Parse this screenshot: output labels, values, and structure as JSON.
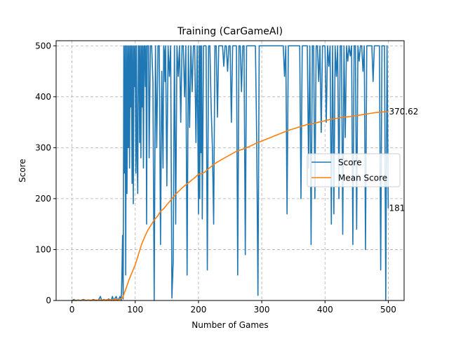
{
  "chart_data": {
    "type": "line",
    "title": "Training (CarGameAI)",
    "xlabel": "Number of Games",
    "ylabel": "Score",
    "xlim": [
      -25,
      525
    ],
    "ylim": [
      0,
      510
    ],
    "xticks": [
      0,
      100,
      200,
      300,
      400,
      500
    ],
    "yticks": [
      0,
      100,
      200,
      300,
      400,
      500
    ],
    "grid": true,
    "legend_position": "center-right",
    "series": [
      {
        "name": "Score",
        "color": "#1f77b4",
        "points": [
          [
            0,
            0
          ],
          [
            3,
            2
          ],
          [
            6,
            0
          ],
          [
            10,
            1
          ],
          [
            14,
            0
          ],
          [
            18,
            2
          ],
          [
            22,
            0
          ],
          [
            26,
            1
          ],
          [
            30,
            0
          ],
          [
            34,
            2
          ],
          [
            38,
            0
          ],
          [
            42,
            1
          ],
          [
            45,
            8
          ],
          [
            47,
            0
          ],
          [
            50,
            2
          ],
          [
            54,
            0
          ],
          [
            58,
            3
          ],
          [
            62,
            0
          ],
          [
            64,
            8
          ],
          [
            66,
            0
          ],
          [
            68,
            4
          ],
          [
            70,
            8
          ],
          [
            72,
            0
          ],
          [
            74,
            3
          ],
          [
            76,
            8
          ],
          [
            78,
            0
          ],
          [
            79,
            50
          ],
          [
            80,
            128
          ],
          [
            81,
            3
          ],
          [
            82,
            500
          ],
          [
            83,
            250
          ],
          [
            84,
            500
          ],
          [
            85,
            50
          ],
          [
            86,
            500
          ],
          [
            87,
            210
          ],
          [
            88,
            500
          ],
          [
            89,
            300
          ],
          [
            90,
            500
          ],
          [
            91,
            260
          ],
          [
            92,
            500
          ],
          [
            93,
            380
          ],
          [
            94,
            500
          ],
          [
            95,
            230
          ],
          [
            96,
            500
          ],
          [
            97,
            190
          ],
          [
            98,
            500
          ],
          [
            99,
            420
          ],
          [
            100,
            500
          ],
          [
            101,
            250
          ],
          [
            102,
            500
          ],
          [
            103,
            280
          ],
          [
            104,
            210
          ],
          [
            105,
            500
          ],
          [
            106,
            500
          ],
          [
            107,
            310
          ],
          [
            108,
            500
          ],
          [
            109,
            280
          ],
          [
            110,
            500
          ],
          [
            111,
            380
          ],
          [
            112,
            500
          ],
          [
            113,
            260
          ],
          [
            114,
            500
          ],
          [
            115,
            500
          ],
          [
            116,
            420
          ],
          [
            117,
            500
          ],
          [
            118,
            150
          ],
          [
            119,
            500
          ],
          [
            120,
            500
          ],
          [
            121,
            500
          ],
          [
            122,
            280
          ],
          [
            124,
            500
          ],
          [
            126,
            500
          ],
          [
            128,
            430
          ],
          [
            130,
            0
          ],
          [
            132,
            500
          ],
          [
            134,
            300
          ],
          [
            136,
            500
          ],
          [
            138,
            500
          ],
          [
            140,
            110
          ],
          [
            142,
            450
          ],
          [
            144,
            260
          ],
          [
            145,
            500
          ],
          [
            146,
            490
          ],
          [
            147,
            430
          ],
          [
            148,
            500
          ],
          [
            150,
            225
          ],
          [
            152,
            500
          ],
          [
            154,
            440
          ],
          [
            156,
            500
          ],
          [
            158,
            5
          ],
          [
            160,
            75
          ],
          [
            162,
            500
          ],
          [
            164,
            150
          ],
          [
            166,
            500
          ],
          [
            168,
            440
          ],
          [
            170,
            500
          ],
          [
            172,
            350
          ],
          [
            174,
            500
          ],
          [
            176,
            500
          ],
          [
            178,
            400
          ],
          [
            180,
            500
          ],
          [
            182,
            50
          ],
          [
            184,
            500
          ],
          [
            186,
            340
          ],
          [
            188,
            500
          ],
          [
            190,
            410
          ],
          [
            192,
            500
          ],
          [
            194,
            500
          ],
          [
            196,
            310
          ],
          [
            198,
            500
          ],
          [
            200,
            170
          ],
          [
            201,
            500
          ],
          [
            202,
            200
          ],
          [
            203,
            500
          ],
          [
            204,
            290
          ],
          [
            205,
            500
          ],
          [
            206,
            160
          ],
          [
            208,
            500
          ],
          [
            210,
            500
          ],
          [
            212,
            500
          ],
          [
            214,
            60
          ],
          [
            216,
            500
          ],
          [
            218,
            500
          ],
          [
            220,
            380
          ],
          [
            222,
            300
          ],
          [
            224,
            150
          ],
          [
            226,
            500
          ],
          [
            228,
            500
          ],
          [
            230,
            360
          ],
          [
            232,
            500
          ],
          [
            234,
            500
          ],
          [
            236,
            500
          ],
          [
            238,
            500
          ],
          [
            240,
            460
          ],
          [
            242,
            500
          ],
          [
            244,
            500
          ],
          [
            246,
            450
          ],
          [
            248,
            500
          ],
          [
            250,
            500
          ],
          [
            252,
            350
          ],
          [
            254,
            500
          ],
          [
            256,
            500
          ],
          [
            258,
            500
          ],
          [
            260,
            500
          ],
          [
            262,
            50
          ],
          [
            264,
            500
          ],
          [
            266,
            500
          ],
          [
            268,
            410
          ],
          [
            270,
            500
          ],
          [
            272,
            500
          ],
          [
            274,
            90
          ],
          [
            276,
            500
          ],
          [
            278,
            500
          ],
          [
            280,
            500
          ],
          [
            282,
            500
          ],
          [
            284,
            500
          ],
          [
            286,
            500
          ],
          [
            288,
            500
          ],
          [
            290,
            500
          ],
          [
            292,
            320
          ],
          [
            294,
            10
          ],
          [
            296,
            500
          ],
          [
            298,
            500
          ],
          [
            300,
            500
          ],
          [
            302,
            500
          ],
          [
            304,
            500
          ],
          [
            306,
            500
          ],
          [
            308,
            500
          ],
          [
            310,
            500
          ],
          [
            312,
            500
          ],
          [
            314,
            500
          ],
          [
            316,
            500
          ],
          [
            318,
            500
          ],
          [
            320,
            500
          ],
          [
            322,
            500
          ],
          [
            324,
            500
          ],
          [
            326,
            500
          ],
          [
            328,
            500
          ],
          [
            330,
            500
          ],
          [
            332,
            500
          ],
          [
            334,
            500
          ],
          [
            336,
            440
          ],
          [
            338,
            500
          ],
          [
            340,
            170
          ],
          [
            342,
            500
          ],
          [
            344,
            500
          ],
          [
            346,
            500
          ],
          [
            348,
            500
          ],
          [
            350,
            500
          ],
          [
            352,
            500
          ],
          [
            354,
            500
          ],
          [
            356,
            500
          ],
          [
            358,
            500
          ],
          [
            360,
            500
          ],
          [
            362,
            200
          ],
          [
            364,
            500
          ],
          [
            366,
            500
          ],
          [
            368,
            500
          ],
          [
            370,
            500
          ],
          [
            372,
            500
          ],
          [
            374,
            260
          ],
          [
            376,
            500
          ],
          [
            378,
            110
          ],
          [
            380,
            500
          ],
          [
            382,
            500
          ],
          [
            384,
            200
          ],
          [
            386,
            500
          ],
          [
            388,
            500
          ],
          [
            390,
            430
          ],
          [
            392,
            500
          ],
          [
            394,
            330
          ],
          [
            396,
            500
          ],
          [
            398,
            500
          ],
          [
            400,
            500
          ],
          [
            402,
            350
          ],
          [
            404,
            500
          ],
          [
            406,
            460
          ],
          [
            408,
            500
          ],
          [
            410,
            150
          ],
          [
            412,
            500
          ],
          [
            414,
            170
          ],
          [
            416,
            500
          ],
          [
            418,
            440
          ],
          [
            420,
            500
          ],
          [
            422,
            200
          ],
          [
            424,
            500
          ],
          [
            426,
            500
          ],
          [
            428,
            130
          ],
          [
            430,
            500
          ],
          [
            432,
            320
          ],
          [
            434,
            500
          ],
          [
            436,
            470
          ],
          [
            438,
            500
          ],
          [
            440,
            480
          ],
          [
            442,
            500
          ],
          [
            444,
            110
          ],
          [
            446,
            500
          ],
          [
            448,
            500
          ],
          [
            450,
            140
          ],
          [
            452,
            500
          ],
          [
            454,
            470
          ],
          [
            456,
            500
          ],
          [
            458,
            500
          ],
          [
            460,
            450
          ],
          [
            462,
            500
          ],
          [
            464,
            100
          ],
          [
            466,
            500
          ],
          [
            468,
            500
          ],
          [
            470,
            500
          ],
          [
            472,
            500
          ],
          [
            474,
            500
          ],
          [
            476,
            430
          ],
          [
            478,
            500
          ],
          [
            480,
            500
          ],
          [
            482,
            500
          ],
          [
            484,
            500
          ],
          [
            486,
            500
          ],
          [
            488,
            60
          ],
          [
            490,
            500
          ],
          [
            492,
            500
          ],
          [
            494,
            500
          ],
          [
            496,
            0
          ],
          [
            498,
            500
          ],
          [
            500,
            181
          ]
        ]
      },
      {
        "name": "Mean Score",
        "color": "#ff7f0e",
        "points": [
          [
            0,
            0
          ],
          [
            20,
            0.6
          ],
          [
            40,
            0.8
          ],
          [
            60,
            1.5
          ],
          [
            75,
            2
          ],
          [
            80,
            5
          ],
          [
            85,
            22
          ],
          [
            90,
            40
          ],
          [
            95,
            55
          ],
          [
            100,
            70
          ],
          [
            105,
            90
          ],
          [
            110,
            110
          ],
          [
            115,
            125
          ],
          [
            120,
            138
          ],
          [
            125,
            148
          ],
          [
            130,
            158
          ],
          [
            135,
            165
          ],
          [
            140,
            175
          ],
          [
            145,
            180
          ],
          [
            150,
            188
          ],
          [
            155,
            195
          ],
          [
            160,
            203
          ],
          [
            165,
            210
          ],
          [
            170,
            216
          ],
          [
            175,
            222
          ],
          [
            180,
            227
          ],
          [
            185,
            232
          ],
          [
            190,
            237
          ],
          [
            195,
            242
          ],
          [
            200,
            248
          ],
          [
            205,
            249
          ],
          [
            210,
            252
          ],
          [
            215,
            258
          ],
          [
            220,
            263
          ],
          [
            225,
            268
          ],
          [
            230,
            272
          ],
          [
            240,
            279
          ],
          [
            250,
            286
          ],
          [
            260,
            293
          ],
          [
            270,
            297
          ],
          [
            280,
            302
          ],
          [
            290,
            308
          ],
          [
            300,
            313
          ],
          [
            310,
            318
          ],
          [
            320,
            323
          ],
          [
            330,
            328
          ],
          [
            340,
            333
          ],
          [
            350,
            337
          ],
          [
            360,
            341
          ],
          [
            370,
            345
          ],
          [
            380,
            347
          ],
          [
            390,
            350
          ],
          [
            400,
            353
          ],
          [
            410,
            356
          ],
          [
            420,
            358
          ],
          [
            430,
            360
          ],
          [
            440,
            361
          ],
          [
            450,
            363
          ],
          [
            460,
            365
          ],
          [
            470,
            367
          ],
          [
            480,
            369
          ],
          [
            490,
            370
          ],
          [
            500,
            370.62
          ]
        ]
      }
    ],
    "annotations": [
      {
        "text": "370.62",
        "x": 500,
        "y": 370.62,
        "color": "#ff7f0e"
      },
      {
        "text": "181",
        "x": 500,
        "y": 181,
        "color": "#0000ff"
      }
    ]
  }
}
